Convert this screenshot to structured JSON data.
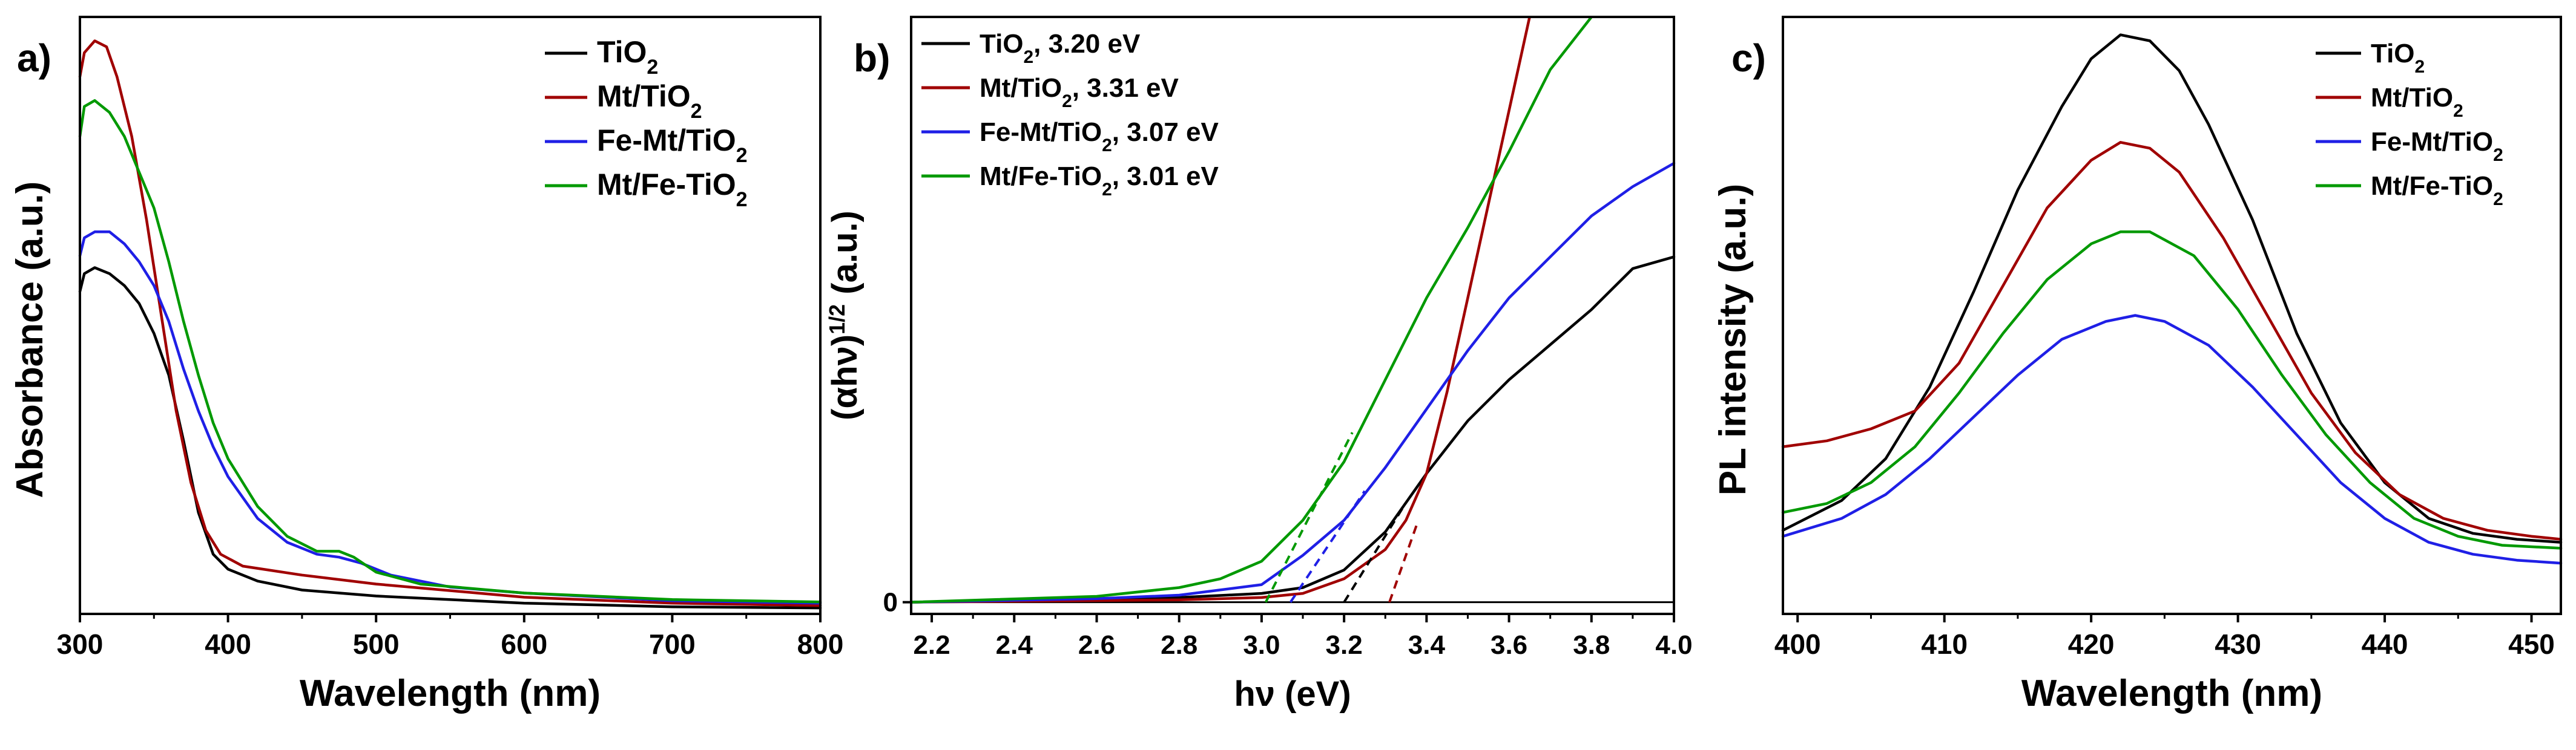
{
  "colors": {
    "black": "#000000",
    "red": "#a00000",
    "blue": "#1f1fe6",
    "green": "#009900",
    "grey": "#888888"
  },
  "chart_data": [
    {
      "type": "line",
      "panel_label": "a)",
      "xlabel": "Wavelength (nm)",
      "ylabel": "Absorbance (a.u.)",
      "xlim": [
        300,
        800
      ],
      "ylim": [
        0,
        1
      ],
      "x_ticks": [
        300,
        400,
        500,
        600,
        700,
        800
      ],
      "show_y_ticks": false,
      "legend": {
        "position": "top-right",
        "entries": [
          {
            "base": "TiO",
            "sub": "2",
            "color": "black"
          },
          {
            "base": "Mt/TiO",
            "sub": "2",
            "color": "red"
          },
          {
            "base": "Fe-Mt/TiO",
            "sub": "2",
            "color": "blue"
          },
          {
            "base": "Mt/Fe-TiO",
            "sub": "2",
            "color": "green"
          }
        ]
      },
      "series": [
        {
          "name": "TiO2",
          "color": "black",
          "points": [
            [
              300,
              0.54
            ],
            [
              303,
              0.57
            ],
            [
              310,
              0.58
            ],
            [
              320,
              0.57
            ],
            [
              330,
              0.55
            ],
            [
              340,
              0.52
            ],
            [
              350,
              0.47
            ],
            [
              360,
              0.4
            ],
            [
              370,
              0.29
            ],
            [
              380,
              0.17
            ],
            [
              390,
              0.1
            ],
            [
              400,
              0.075
            ],
            [
              420,
              0.055
            ],
            [
              450,
              0.04
            ],
            [
              500,
              0.03
            ],
            [
              600,
              0.018
            ],
            [
              700,
              0.012
            ],
            [
              800,
              0.01
            ]
          ]
        },
        {
          "name": "Mt/TiO2",
          "color": "red",
          "points": [
            [
              300,
              0.9
            ],
            [
              303,
              0.94
            ],
            [
              310,
              0.96
            ],
            [
              318,
              0.95
            ],
            [
              325,
              0.9
            ],
            [
              335,
              0.8
            ],
            [
              345,
              0.66
            ],
            [
              355,
              0.5
            ],
            [
              365,
              0.34
            ],
            [
              375,
              0.22
            ],
            [
              385,
              0.14
            ],
            [
              395,
              0.1
            ],
            [
              410,
              0.08
            ],
            [
              450,
              0.065
            ],
            [
              500,
              0.05
            ],
            [
              600,
              0.028
            ],
            [
              700,
              0.018
            ],
            [
              800,
              0.014
            ]
          ]
        },
        {
          "name": "Fe-Mt/TiO2",
          "color": "blue",
          "points": [
            [
              300,
              0.6
            ],
            [
              303,
              0.63
            ],
            [
              310,
              0.64
            ],
            [
              320,
              0.64
            ],
            [
              330,
              0.62
            ],
            [
              340,
              0.59
            ],
            [
              350,
              0.55
            ],
            [
              360,
              0.49
            ],
            [
              370,
              0.41
            ],
            [
              380,
              0.34
            ],
            [
              390,
              0.28
            ],
            [
              400,
              0.23
            ],
            [
              420,
              0.16
            ],
            [
              440,
              0.12
            ],
            [
              460,
              0.1
            ],
            [
              475,
              0.095
            ],
            [
              490,
              0.085
            ],
            [
              510,
              0.065
            ],
            [
              550,
              0.045
            ],
            [
              600,
              0.035
            ],
            [
              700,
              0.022
            ],
            [
              800,
              0.018
            ]
          ]
        },
        {
          "name": "Mt/Fe-TiO2",
          "color": "green",
          "points": [
            [
              300,
              0.8
            ],
            [
              303,
              0.85
            ],
            [
              310,
              0.86
            ],
            [
              320,
              0.84
            ],
            [
              330,
              0.8
            ],
            [
              340,
              0.74
            ],
            [
              350,
              0.68
            ],
            [
              360,
              0.59
            ],
            [
              370,
              0.49
            ],
            [
              380,
              0.4
            ],
            [
              390,
              0.32
            ],
            [
              400,
              0.26
            ],
            [
              420,
              0.18
            ],
            [
              440,
              0.13
            ],
            [
              460,
              0.105
            ],
            [
              475,
              0.105
            ],
            [
              485,
              0.095
            ],
            [
              500,
              0.07
            ],
            [
              530,
              0.05
            ],
            [
              600,
              0.035
            ],
            [
              700,
              0.024
            ],
            [
              800,
              0.02
            ]
          ]
        }
      ]
    },
    {
      "type": "line",
      "panel_label": "b)",
      "xlabel": "hν (eV)",
      "ylabel_base": "(αhν)",
      "ylabel_sup": "1/2",
      "ylabel_suffix": " (a.u.)",
      "xlim": [
        2.15,
        4.0
      ],
      "ylim": [
        -0.02,
        1
      ],
      "x_ticks": [
        2.2,
        2.4,
        2.6,
        2.8,
        3.0,
        3.2,
        3.4,
        3.6,
        3.8,
        4.0
      ],
      "y_ticks": [
        0
      ],
      "legend": {
        "position": "top-left",
        "entries": [
          {
            "base": "TiO",
            "sub": "2",
            "suffix": ", 3.20 eV",
            "color": "black"
          },
          {
            "base": "Mt/TiO",
            "sub": "2",
            "suffix": ", 3.31 eV",
            "color": "red"
          },
          {
            "base": "Fe-Mt/TiO",
            "sub": "2",
            "suffix": ", 3.07 eV",
            "color": "blue"
          },
          {
            "base": "Mt/Fe-TiO",
            "sub": "2",
            "suffix": ", 3.01 eV",
            "color": "green"
          }
        ]
      },
      "baseline": {
        "y": 0,
        "color": "black"
      },
      "series": [
        {
          "name": "TiO2",
          "color": "black",
          "points": [
            [
              2.15,
              0.0
            ],
            [
              2.6,
              0.006
            ],
            [
              2.8,
              0.008
            ],
            [
              3.0,
              0.015
            ],
            [
              3.1,
              0.025
            ],
            [
              3.2,
              0.055
            ],
            [
              3.3,
              0.12
            ],
            [
              3.4,
              0.22
            ],
            [
              3.5,
              0.31
            ],
            [
              3.6,
              0.38
            ],
            [
              3.7,
              0.44
            ],
            [
              3.8,
              0.5
            ],
            [
              3.9,
              0.57
            ],
            [
              4.0,
              0.59
            ]
          ]
        },
        {
          "name": "Mt/TiO2",
          "color": "red",
          "points": [
            [
              2.15,
              0.0
            ],
            [
              2.8,
              0.004
            ],
            [
              3.0,
              0.008
            ],
            [
              3.1,
              0.015
            ],
            [
              3.2,
              0.04
            ],
            [
              3.3,
              0.09
            ],
            [
              3.35,
              0.14
            ],
            [
              3.4,
              0.22
            ],
            [
              3.45,
              0.36
            ],
            [
              3.5,
              0.52
            ],
            [
              3.55,
              0.68
            ],
            [
              3.6,
              0.84
            ],
            [
              3.65,
              1.0
            ]
          ]
        },
        {
          "name": "Fe-Mt/TiO2",
          "color": "blue",
          "points": [
            [
              2.15,
              0.0
            ],
            [
              2.6,
              0.006
            ],
            [
              2.8,
              0.012
            ],
            [
              3.0,
              0.03
            ],
            [
              3.1,
              0.08
            ],
            [
              3.2,
              0.14
            ],
            [
              3.3,
              0.23
            ],
            [
              3.4,
              0.33
            ],
            [
              3.5,
              0.43
            ],
            [
              3.6,
              0.52
            ],
            [
              3.7,
              0.59
            ],
            [
              3.8,
              0.66
            ],
            [
              3.9,
              0.71
            ],
            [
              4.0,
              0.75
            ]
          ]
        },
        {
          "name": "Mt/Fe-TiO2",
          "color": "green",
          "points": [
            [
              2.15,
              0.0
            ],
            [
              2.6,
              0.01
            ],
            [
              2.8,
              0.025
            ],
            [
              2.9,
              0.04
            ],
            [
              3.0,
              0.07
            ],
            [
              3.1,
              0.14
            ],
            [
              3.2,
              0.24
            ],
            [
              3.3,
              0.38
            ],
            [
              3.4,
              0.52
            ],
            [
              3.5,
              0.64
            ],
            [
              3.6,
              0.77
            ],
            [
              3.7,
              0.91
            ],
            [
              3.8,
              1.0
            ]
          ]
        }
      ],
      "tangents": [
        {
          "color": "black",
          "from": [
            3.2,
            0.0
          ],
          "to": [
            3.35,
            0.17
          ]
        },
        {
          "color": "red",
          "from": [
            3.31,
            0.0
          ],
          "to": [
            3.38,
            0.14
          ]
        },
        {
          "color": "blue",
          "from": [
            3.07,
            0.0
          ],
          "to": [
            3.25,
            0.19
          ]
        },
        {
          "color": "green",
          "from": [
            3.01,
            0.0
          ],
          "to": [
            3.22,
            0.29
          ]
        }
      ]
    },
    {
      "type": "line",
      "panel_label": "c)",
      "xlabel": "Wavelength (nm)",
      "ylabel": "PL intensity (a.u.)",
      "xlim": [
        399,
        452
      ],
      "ylim": [
        0,
        1
      ],
      "x_ticks": [
        400,
        410,
        420,
        430,
        440,
        450
      ],
      "show_y_ticks": false,
      "legend": {
        "position": "top-right",
        "entries": [
          {
            "base": "TiO",
            "sub": "2",
            "color": "black"
          },
          {
            "base": "Mt/TiO",
            "sub": "2",
            "color": "red"
          },
          {
            "base": "Fe-Mt/TiO",
            "sub": "2",
            "color": "blue"
          },
          {
            "base": "Mt/Fe-TiO",
            "sub": "2",
            "color": "green"
          }
        ]
      },
      "series": [
        {
          "name": "TiO2",
          "color": "black",
          "points": [
            [
              399,
              0.14
            ],
            [
              403,
              0.19
            ],
            [
              406,
              0.26
            ],
            [
              409,
              0.38
            ],
            [
              412,
              0.54
            ],
            [
              415,
              0.71
            ],
            [
              418,
              0.85
            ],
            [
              420,
              0.93
            ],
            [
              422,
              0.97
            ],
            [
              424,
              0.96
            ],
            [
              426,
              0.91
            ],
            [
              428,
              0.82
            ],
            [
              431,
              0.66
            ],
            [
              434,
              0.47
            ],
            [
              437,
              0.32
            ],
            [
              440,
              0.22
            ],
            [
              443,
              0.16
            ],
            [
              446,
              0.135
            ],
            [
              449,
              0.125
            ],
            [
              452,
              0.12
            ]
          ]
        },
        {
          "name": "Mt/TiO2",
          "color": "red",
          "points": [
            [
              399,
              0.28
            ],
            [
              402,
              0.29
            ],
            [
              405,
              0.31
            ],
            [
              408,
              0.34
            ],
            [
              411,
              0.42
            ],
            [
              414,
              0.55
            ],
            [
              417,
              0.68
            ],
            [
              420,
              0.76
            ],
            [
              422,
              0.79
            ],
            [
              424,
              0.78
            ],
            [
              426,
              0.74
            ],
            [
              429,
              0.63
            ],
            [
              432,
              0.5
            ],
            [
              435,
              0.37
            ],
            [
              438,
              0.27
            ],
            [
              441,
              0.2
            ],
            [
              444,
              0.16
            ],
            [
              447,
              0.14
            ],
            [
              450,
              0.13
            ],
            [
              452,
              0.125
            ]
          ]
        },
        {
          "name": "Fe-Mt/TiO2",
          "color": "blue",
          "points": [
            [
              399,
              0.13
            ],
            [
              403,
              0.16
            ],
            [
              406,
              0.2
            ],
            [
              409,
              0.26
            ],
            [
              412,
              0.33
            ],
            [
              415,
              0.4
            ],
            [
              418,
              0.46
            ],
            [
              421,
              0.49
            ],
            [
              423,
              0.5
            ],
            [
              425,
              0.49
            ],
            [
              428,
              0.45
            ],
            [
              431,
              0.38
            ],
            [
              434,
              0.3
            ],
            [
              437,
              0.22
            ],
            [
              440,
              0.16
            ],
            [
              443,
              0.12
            ],
            [
              446,
              0.1
            ],
            [
              449,
              0.09
            ],
            [
              452,
              0.085
            ]
          ]
        },
        {
          "name": "Mt/Fe-TiO2",
          "color": "green",
          "points": [
            [
              399,
              0.17
            ],
            [
              402,
              0.185
            ],
            [
              405,
              0.22
            ],
            [
              408,
              0.28
            ],
            [
              411,
              0.37
            ],
            [
              414,
              0.47
            ],
            [
              417,
              0.56
            ],
            [
              420,
              0.62
            ],
            [
              422,
              0.64
            ],
            [
              424,
              0.64
            ],
            [
              427,
              0.6
            ],
            [
              430,
              0.51
            ],
            [
              433,
              0.4
            ],
            [
              436,
              0.3
            ],
            [
              439,
              0.22
            ],
            [
              442,
              0.16
            ],
            [
              445,
              0.13
            ],
            [
              448,
              0.115
            ],
            [
              452,
              0.11
            ]
          ]
        }
      ]
    }
  ]
}
